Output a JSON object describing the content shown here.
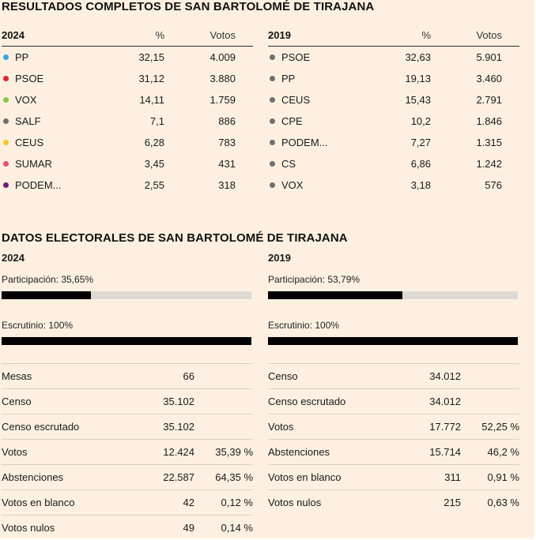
{
  "titles": {
    "results": "RESULTADOS COMPLETOS DE SAN BARTOLOMÉ DE TIRAJANA",
    "electoral": "DATOS ELECTORALES DE SAN BARTOLOMÉ DE TIRAJANA"
  },
  "results": {
    "left": {
      "year": "2024",
      "pct_header": "%",
      "votes_header": "Votos",
      "rows": [
        {
          "party": "PP",
          "pct": "32,15",
          "votes": "4.009",
          "color": "#3aa0e0"
        },
        {
          "party": "PSOE",
          "pct": "31,12",
          "votes": "3.880",
          "color": "#e0242b"
        },
        {
          "party": "VOX",
          "pct": "14,11",
          "votes": "1.759",
          "color": "#8bc34a"
        },
        {
          "party": "SALF",
          "pct": "7,1",
          "votes": "886",
          "color": "#707070"
        },
        {
          "party": "CEUS",
          "pct": "6,28",
          "votes": "783",
          "color": "#f6c628"
        },
        {
          "party": "SUMAR",
          "pct": "3,45",
          "votes": "431",
          "color": "#ea4f7a"
        },
        {
          "party": "PODEM...",
          "pct": "2,55",
          "votes": "318",
          "color": "#6b1f73"
        }
      ]
    },
    "right": {
      "year": "2019",
      "pct_header": "%",
      "votes_header": "Votos",
      "rows": [
        {
          "party": "PSOE",
          "pct": "32,63",
          "votes": "5.901",
          "color": "#707070"
        },
        {
          "party": "PP",
          "pct": "19,13",
          "votes": "3.460",
          "color": "#707070"
        },
        {
          "party": "CEUS",
          "pct": "15,43",
          "votes": "2.791",
          "color": "#707070"
        },
        {
          "party": "CPE",
          "pct": "10,2",
          "votes": "1.846",
          "color": "#707070"
        },
        {
          "party": "PODEM...",
          "pct": "7,27",
          "votes": "1.315",
          "color": "#707070"
        },
        {
          "party": "CS",
          "pct": "6,86",
          "votes": "1.242",
          "color": "#707070"
        },
        {
          "party": "VOX",
          "pct": "3,18",
          "votes": "576",
          "color": "#707070"
        }
      ]
    }
  },
  "electoral": {
    "left": {
      "year": "2024",
      "participation_label": "Participación: 35,65%",
      "participation_fraction": 0.3565,
      "scrutiny_label": "Escrutinio: 100%",
      "scrutiny_fraction": 1.0,
      "rows": [
        {
          "label": "Mesas",
          "value": "66",
          "pct": ""
        },
        {
          "label": "Censo",
          "value": "35.102",
          "pct": ""
        },
        {
          "label": "Censo escrutado",
          "value": "35.102",
          "pct": ""
        },
        {
          "label": "Votos",
          "value": "12.424",
          "pct": "35,39 %"
        },
        {
          "label": "Abstenciones",
          "value": "22.587",
          "pct": "64,35 %"
        },
        {
          "label": "Votos en blanco",
          "value": "42",
          "pct": "0,12 %"
        },
        {
          "label": "Votos nulos",
          "value": "49",
          "pct": "0,14 %"
        }
      ]
    },
    "right": {
      "year": "2019",
      "participation_label": "Participación: 53,79%",
      "participation_fraction": 0.5379,
      "scrutiny_label": "Escrutinio: 100%",
      "scrutiny_fraction": 1.0,
      "rows": [
        {
          "label": "Censo",
          "value": "34.012",
          "pct": ""
        },
        {
          "label": "Censo escrutado",
          "value": "34.012",
          "pct": ""
        },
        {
          "label": "Votos",
          "value": "17.772",
          "pct": "52,25 %"
        },
        {
          "label": "Abstenciones",
          "value": "15.714",
          "pct": "46,2 %"
        },
        {
          "label": "Votos en blanco",
          "value": "311",
          "pct": "0,91 %"
        },
        {
          "label": "Votos nulos",
          "value": "215",
          "pct": "0,63 %"
        }
      ]
    }
  }
}
